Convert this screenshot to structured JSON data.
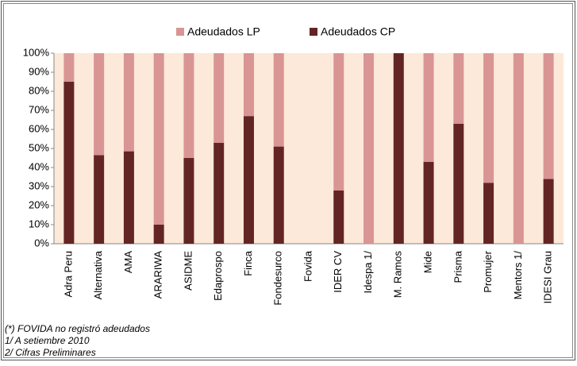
{
  "chart_data": {
    "type": "stacked_bar_100",
    "categories": [
      "Adra Peru",
      "Alternativa",
      "AMA",
      "ARARIWA",
      "ASIDME",
      "Edaprospo",
      "Finca",
      "Fondesurco",
      "Fovida",
      "IDER CV",
      "Idespa 1/",
      "M. Ramos",
      "Mide",
      "Prisma",
      "Promujer",
      "Mentors 1/",
      "IDESI Grau"
    ],
    "series": [
      {
        "name": "Adeudados LP",
        "color": "#d99594",
        "values": [
          15,
          53.5,
          51.5,
          90,
          55,
          47,
          33,
          49,
          0,
          72,
          100,
          0,
          57,
          37,
          68,
          100,
          66
        ]
      },
      {
        "name": "Adeudados CP",
        "color": "#632523",
        "values": [
          85,
          46.5,
          48.5,
          10,
          45,
          53,
          67,
          51,
          0,
          28,
          0,
          100,
          43,
          63,
          32,
          0,
          34
        ]
      }
    ],
    "ylim": [
      0,
      100
    ],
    "yticks": [
      {
        "value": 0,
        "label": "0%"
      },
      {
        "value": 10,
        "label": "10%"
      },
      {
        "value": 20,
        "label": "20%"
      },
      {
        "value": 30,
        "label": "30%"
      },
      {
        "value": 40,
        "label": "40%"
      },
      {
        "value": 50,
        "label": "50%"
      },
      {
        "value": 60,
        "label": "60%"
      },
      {
        "value": 70,
        "label": "70%"
      },
      {
        "value": 80,
        "label": "80%"
      },
      {
        "value": 90,
        "label": "90%"
      },
      {
        "value": 100,
        "label": "100%"
      }
    ],
    "notes": [
      "(*) FOVIDA no registró adeudados",
      "1/ A setiembre 2010",
      "2/ Cifras Preliminares"
    ],
    "plot_background": "#fde9d9"
  }
}
